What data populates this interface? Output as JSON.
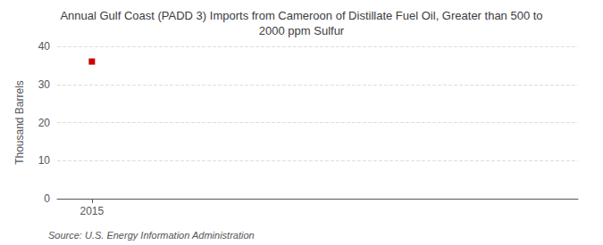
{
  "chart_data": {
    "type": "line",
    "title": "Annual Gulf Coast (PADD 3) Imports from Cameroon of Distillate Fuel Oil, Greater than 500 to\n2000 ppm Sulfur",
    "ylabel": "Thousand Barrels",
    "annotations": [
      "Source: U.S. Energy Information Administration"
    ],
    "x": [
      2015
    ],
    "values": [
      36
    ],
    "color": "#cc0000",
    "marker": "square",
    "line_style": "solid",
    "xlim": [
      2014.5,
      2022
    ],
    "ylim": [
      0,
      40
    ],
    "xticks": [
      2015
    ],
    "yticks": [
      0,
      10,
      20,
      30,
      40
    ],
    "grid": true
  }
}
